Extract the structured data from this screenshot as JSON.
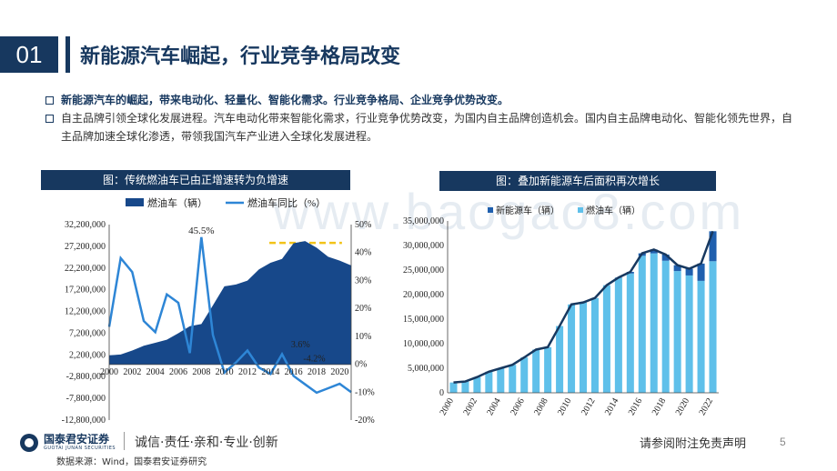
{
  "header": {
    "section_number": "01",
    "title": "新能源汽车崛起，行业竞争格局改变"
  },
  "bullets": [
    "新能源汽车的崛起，带来电动化、轻量化、智能化需求。行业竞争格局、企业竞争优势改变。",
    "自主品牌引领全球化发展进程。汽车电动化带来智能化需求，行业竞争优势改变，为国内自主品牌创造机会。国内自主品牌电动化、智能化领先世界，自主品牌加速全球化渗透，带领我国汽车产业进入全球化发展进程。"
  ],
  "watermark": "www.baogao8.com",
  "chart_left": {
    "caption": "图：传统燃油车已由正增速转为负增速",
    "legend_area": "燃油车（辆）",
    "legend_line": "燃油车同比（%）",
    "y_left_ticks": [
      "32,200,000",
      "27,200,000",
      "22,200,000",
      "17,200,000",
      "12,200,000",
      "7,200,000",
      "2,200,000",
      "-2,800,000",
      "-7,800,000",
      "-12,800,000"
    ],
    "y_right_ticks": [
      "50%",
      "40%",
      "30%",
      "20%",
      "10%",
      "0%",
      "-10%",
      "-20%"
    ],
    "x_ticks": [
      "2000",
      "2002",
      "2004",
      "2006",
      "2008",
      "2010",
      "2012",
      "2014",
      "2016",
      "2018",
      "2020"
    ],
    "annotations": [
      "45.5%",
      "3.6%",
      "-4.2%"
    ]
  },
  "chart_right": {
    "caption": "图：叠加新能源车后面积再次增长",
    "legend_nev": "新能源车（辆）",
    "legend_fuel": "燃油车（辆）",
    "y_ticks": [
      "35,000,000",
      "30,000,000",
      "25,000,000",
      "20,000,000",
      "15,000,000",
      "10,000,000",
      "5,000,000",
      "0"
    ],
    "x_ticks": [
      "2000",
      "2002",
      "2004",
      "2006",
      "2008",
      "2010",
      "2012",
      "2014",
      "2016",
      "2018",
      "2020",
      "2022"
    ]
  },
  "chart_data": [
    {
      "type": "area",
      "title": "图：传统燃油车已由正增速转为负增速",
      "x": [
        2000,
        2001,
        2002,
        2003,
        2004,
        2005,
        2006,
        2007,
        2008,
        2009,
        2010,
        2011,
        2012,
        2013,
        2014,
        2015,
        2016,
        2017,
        2018,
        2019,
        2020,
        2021
      ],
      "series": [
        {
          "name": "燃油车（辆）",
          "axis": "left",
          "values": [
            2100000,
            2300000,
            3200000,
            4300000,
            5000000,
            5700000,
            7200000,
            8800000,
            9300000,
            13600000,
            18000000,
            18400000,
            19300000,
            21900000,
            23400000,
            24300000,
            27900000,
            28400000,
            26900000,
            24800000,
            23900000,
            22800000
          ]
        },
        {
          "name": "燃油车同比（%）",
          "axis": "right",
          "values": [
            13.4,
            38,
            33,
            15.5,
            11.5,
            25,
            22,
            4,
            45.5,
            10.5,
            -3,
            0.6,
            4.9,
            -1.2,
            -3.5,
            3.6,
            -4.2,
            -7.2,
            -10.2,
            -8.6,
            -7,
            -10
          ]
        }
      ],
      "ylim_left": [
        -12800000,
        32200000
      ],
      "ylim_right": [
        -20,
        50
      ]
    },
    {
      "type": "bar",
      "title": "图：叠加新能源车后面积再次增长",
      "x": [
        2000,
        2001,
        2002,
        2003,
        2004,
        2005,
        2006,
        2007,
        2008,
        2009,
        2010,
        2011,
        2012,
        2013,
        2014,
        2015,
        2016,
        2017,
        2018,
        2019,
        2020,
        2021,
        2022
      ],
      "series": [
        {
          "name": "新能源车（辆）",
          "values": [
            0,
            0,
            0,
            0,
            0,
            0,
            0,
            0,
            0,
            0,
            0,
            0,
            12000,
            18000,
            75000,
            330000,
            510000,
            780000,
            1250000,
            1200000,
            1370000,
            3520000,
            6100000
          ]
        },
        {
          "name": "燃油车（辆）",
          "values": [
            2100000,
            2300000,
            3200000,
            4300000,
            5000000,
            5700000,
            7200000,
            8800000,
            9300000,
            13600000,
            18000000,
            18400000,
            19300000,
            21900000,
            23400000,
            24300000,
            27900000,
            28400000,
            26900000,
            24800000,
            23900000,
            22800000,
            26800000
          ]
        }
      ],
      "ylim": [
        0,
        35000000
      ]
    }
  ],
  "footer": {
    "logo_cn": "国泰君安证券",
    "logo_en": "GUOTAI JUNAN SECURITIES",
    "slogan": "诚信·责任·亲和·专业·创新",
    "disclaimer": "请参阅附注免责声明",
    "page": "5",
    "source": "数据来源：Wind，国泰君安证券研究"
  }
}
